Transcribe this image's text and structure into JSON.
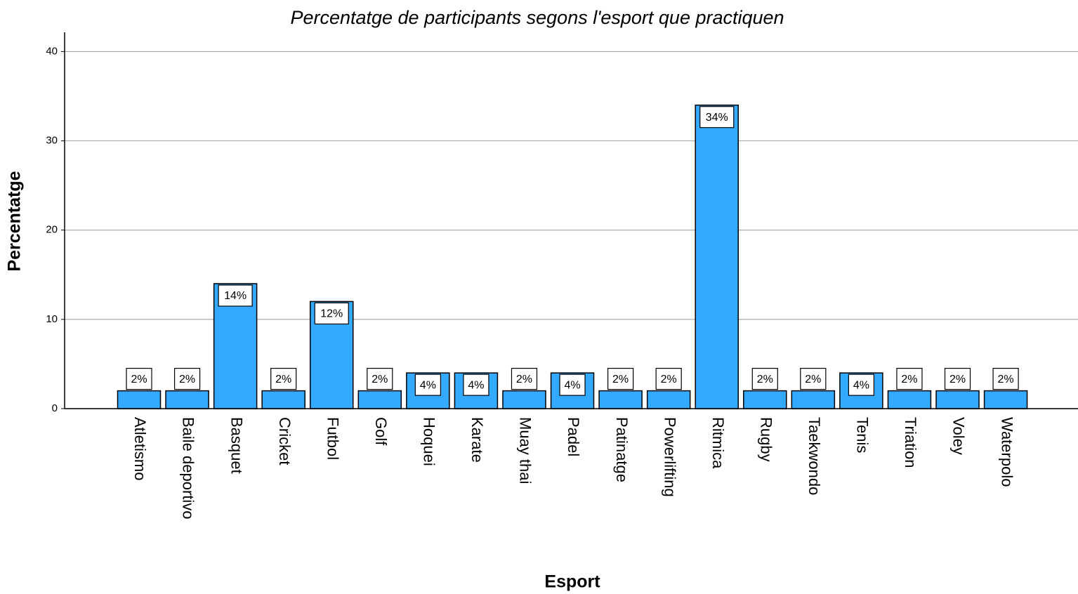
{
  "chart_data": {
    "type": "bar",
    "title": "Percentatge de participants segons l'esport que practiquen",
    "x_label": "Esport",
    "y_label": "Percentatge",
    "categories": [
      "Atletismo",
      "Baile deportivo",
      "Basquet",
      "Cricket",
      "Futbol",
      "Golf",
      "Hoquei",
      "Karate",
      "Muay thai",
      "Padel",
      "Patinatge",
      "Powerlifting",
      "Ritmica",
      "Rugby",
      "Taekwondo",
      "Tenis",
      "Triation",
      "Voley",
      "Waterpolo"
    ],
    "values": [
      2,
      2,
      14,
      2,
      12,
      2,
      4,
      4,
      2,
      4,
      2,
      2,
      34,
      2,
      2,
      4,
      2,
      2,
      2
    ],
    "value_labels": [
      "2%",
      "2%",
      "14%",
      "2%",
      "12%",
      "2%",
      "4%",
      "4%",
      "2%",
      "4%",
      "2%",
      "2%",
      "34%",
      "2%",
      "2%",
      "4%",
      "2%",
      "2%",
      "2%"
    ],
    "color": "#33aaff",
    "ylim": [
      0,
      42
    ],
    "yticks": [
      0,
      10,
      20,
      30,
      40
    ],
    "grid": true
  }
}
